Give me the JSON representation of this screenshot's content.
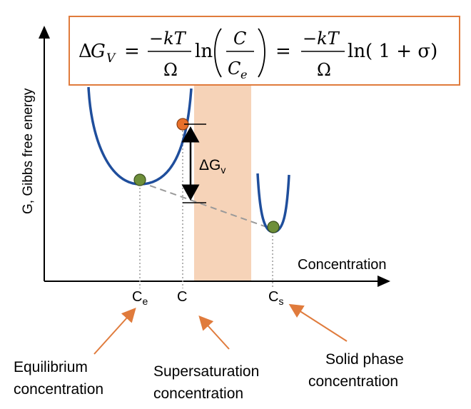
{
  "equation": {
    "delta": "Δ",
    "G": "G",
    "V": "V",
    "equals": "=",
    "neg_kT": "−kT",
    "Omega": "Ω",
    "ln": "ln",
    "C": "C",
    "Ce_C": "C",
    "Ce_e": "e",
    "one_plus_sigma": "ln( 1 + σ)"
  },
  "axes": {
    "y_label": "G, Gibbs free energy",
    "x_label": "Concentration"
  },
  "points": {
    "ce_label_main": "C",
    "ce_label_sub": "e",
    "c_label": "C",
    "cs_label_main": "C",
    "cs_label_sub": "s"
  },
  "delta_gv": {
    "delta": "ΔG",
    "sub": "v"
  },
  "annotations": {
    "equilibrium_line1": "Equilibrium",
    "equilibrium_line2": "concentration",
    "supersaturation_line1": "Supersaturation",
    "supersaturation_line2": "concentration",
    "solid_line1": "Solid phase",
    "solid_line2": "concentration"
  },
  "colors": {
    "curve": "#1f4e9c",
    "band": "#f6d3b8",
    "box_border": "#e07b3c",
    "marker_green": "#6e8f3a",
    "marker_orange": "#e8702a",
    "arrow_orange": "#e07b3c",
    "dashed_line": "#9a9a9a"
  }
}
